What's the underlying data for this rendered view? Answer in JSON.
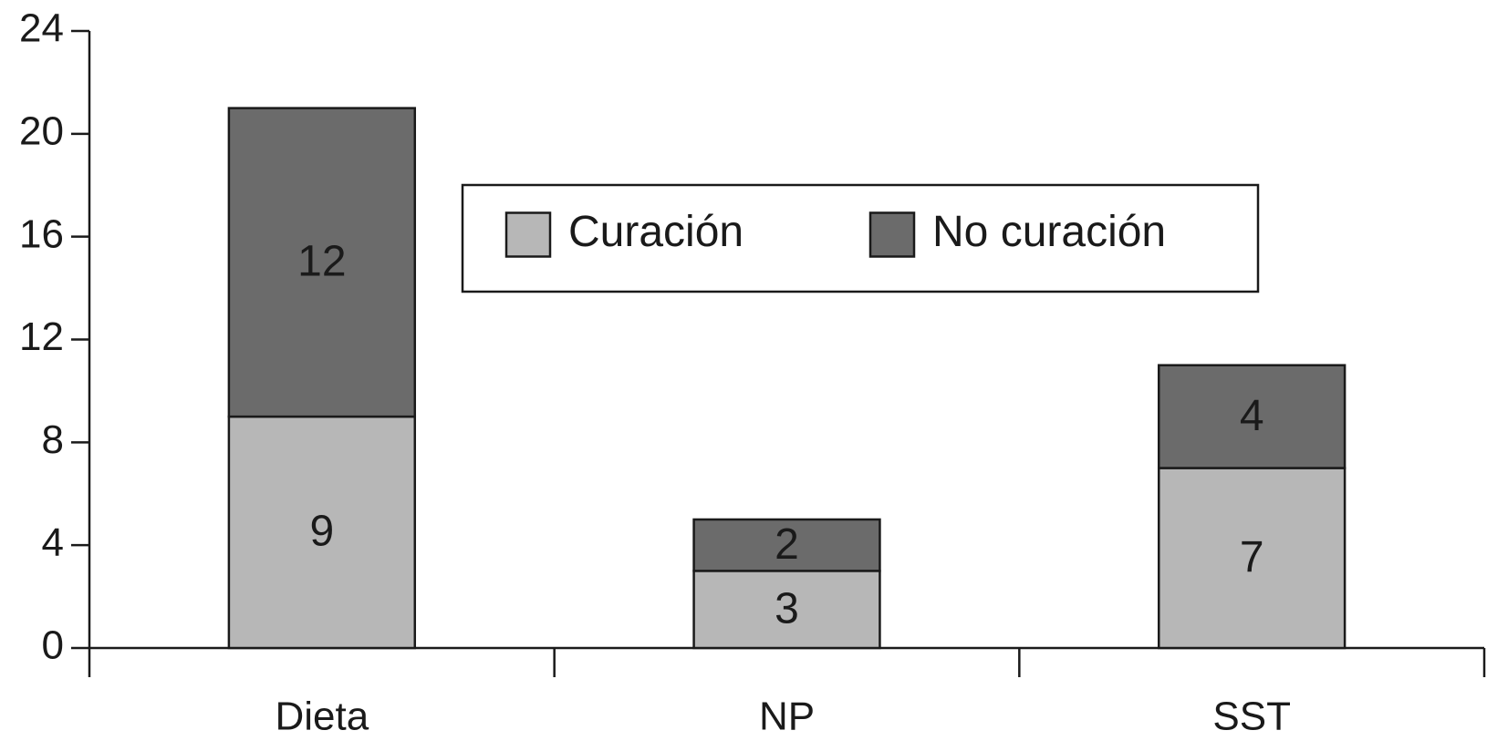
{
  "chart_data": {
    "type": "stacked_bar",
    "categories": [
      "Dieta",
      "NP",
      "SST"
    ],
    "series": [
      {
        "name": "Curación",
        "color": "#b7b7b7",
        "values": [
          9,
          3,
          7
        ]
      },
      {
        "name": "No curación",
        "color": "#6b6b6b",
        "values": [
          12,
          2,
          4
        ]
      }
    ],
    "ylim": [
      0,
      24
    ],
    "yticks": [
      0,
      4,
      8,
      12,
      16,
      20,
      24
    ],
    "legend": "upper center",
    "grid": false
  }
}
